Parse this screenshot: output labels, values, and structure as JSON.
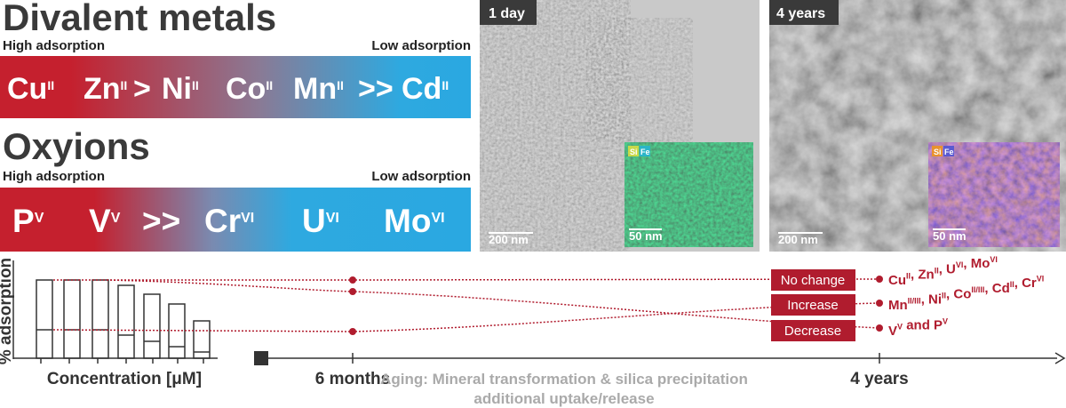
{
  "divalent": {
    "title": "Divalent metals",
    "high": "High adsorption",
    "low": "Low adsorption",
    "items": [
      [
        "Cu",
        "II"
      ],
      [
        "Zn",
        "II"
      ],
      [
        ">"
      ],
      [
        "Ni",
        "II"
      ],
      [
        "Co",
        "II"
      ],
      [
        "Mn",
        "II"
      ],
      [
        ">>"
      ],
      [
        "Cd",
        "II"
      ]
    ]
  },
  "oxyions": {
    "title": "Oxyions",
    "high": "High adsorption",
    "low": "Low adsorption",
    "items": [
      [
        "P",
        "V"
      ],
      [
        "V",
        "V"
      ],
      [
        ">>"
      ],
      [
        "Cr",
        "VI"
      ],
      [
        "U",
        "VI"
      ],
      [
        "Mo",
        "VI"
      ]
    ]
  },
  "images": [
    {
      "label": "1 day",
      "scale": "200 nm",
      "inset": [
        "Si",
        "Fe",
        "50 nm"
      ]
    },
    {
      "label": "4 years",
      "scale": "200 nm",
      "inset": [
        "Si",
        "Fe",
        "50 nm"
      ]
    }
  ],
  "timeline": {
    "y_label": "% adsorption",
    "x_label": "Concentration [μM]",
    "ticks": [
      "6 months",
      "4 years"
    ],
    "note": [
      "Aging: Mineral transformation & silica precipitation",
      "additional uptake/release"
    ],
    "outcomes": [
      {
        "label": "No change",
        "elements": [
          [
            "Cu",
            "II"
          ],
          [
            ", Zn",
            "II"
          ],
          [
            ", U",
            "VI"
          ],
          [
            ", Mo",
            "VI"
          ]
        ]
      },
      {
        "label": "Increase",
        "elements": [
          [
            "Mn",
            "II/III"
          ],
          [
            ", Ni",
            "II"
          ],
          [
            ", Co",
            "II/III"
          ],
          [
            ", Cd",
            "II"
          ],
          [
            ", Cr",
            "VI"
          ]
        ]
      },
      {
        "label": "Decrease",
        "elements": [
          [
            "V",
            "V"
          ],
          [
            " and P",
            "V"
          ]
        ]
      }
    ]
  }
}
